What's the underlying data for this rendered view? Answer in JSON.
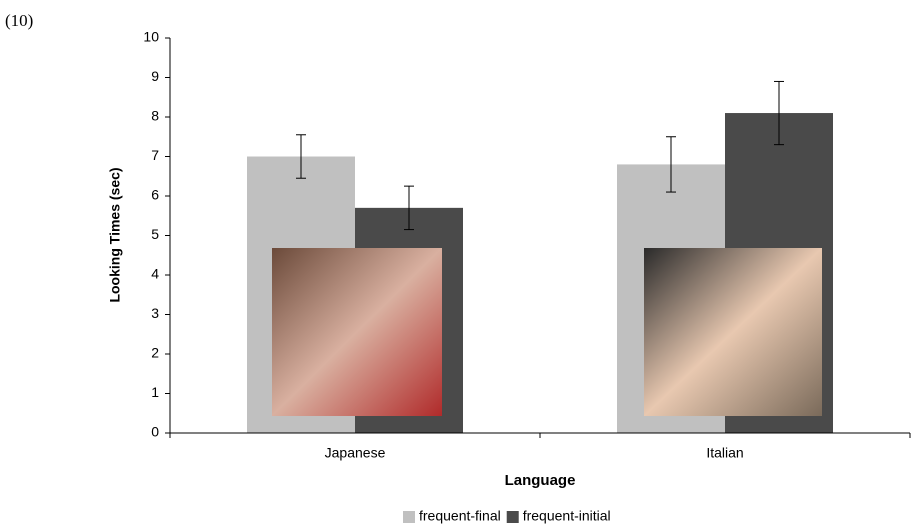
{
  "chart_data": {
    "type": "bar",
    "annotation": "(10)",
    "x_label": "Language",
    "y_label": "Looking Times (sec)",
    "categories": [
      "Japanese",
      "Italian"
    ],
    "series": [
      {
        "name": "frequent-final",
        "color": "#c0c0c0",
        "values": [
          7.0,
          6.8
        ],
        "errors": [
          0.55,
          0.7
        ]
      },
      {
        "name": "frequent-initial",
        "color": "#4a4a4a",
        "values": [
          5.7,
          8.1
        ],
        "errors": [
          0.55,
          0.8
        ]
      }
    ],
    "ylim": [
      0,
      10
    ],
    "yticks": [
      0,
      1,
      2,
      3,
      4,
      5,
      6,
      7,
      8,
      9,
      10
    ],
    "legend": "bottom"
  }
}
